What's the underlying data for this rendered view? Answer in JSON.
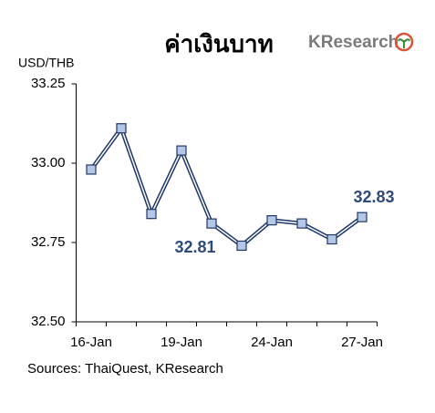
{
  "chart_data": {
    "type": "line",
    "title": "ค่าเงินบาท",
    "logo": "KResearch",
    "y_label": "USD/THB",
    "source": "Sources: ThaiQuest, KResearch",
    "categories": [
      "16-Jan",
      null,
      null,
      "19-Jan",
      null,
      null,
      "24-Jan",
      null,
      null,
      "27-Jan"
    ],
    "series": [
      {
        "name": "USD/THB",
        "color": "#1f3864",
        "marker_color": "#b4c7e7",
        "values": [
          32.98,
          33.11,
          32.84,
          33.04,
          32.81,
          32.74,
          32.82,
          32.81,
          32.76,
          32.83
        ],
        "value_labels": [
          null,
          null,
          null,
          null,
          "32.81",
          null,
          null,
          null,
          null,
          "32.83"
        ]
      }
    ],
    "ylim": [
      32.5,
      33.25
    ],
    "yticks": [
      {
        "value": 32.5,
        "label": "32.50"
      },
      32.75,
      {
        "value": 33,
        "label": "33.00"
      },
      33.25
    ],
    "grid": false
  }
}
